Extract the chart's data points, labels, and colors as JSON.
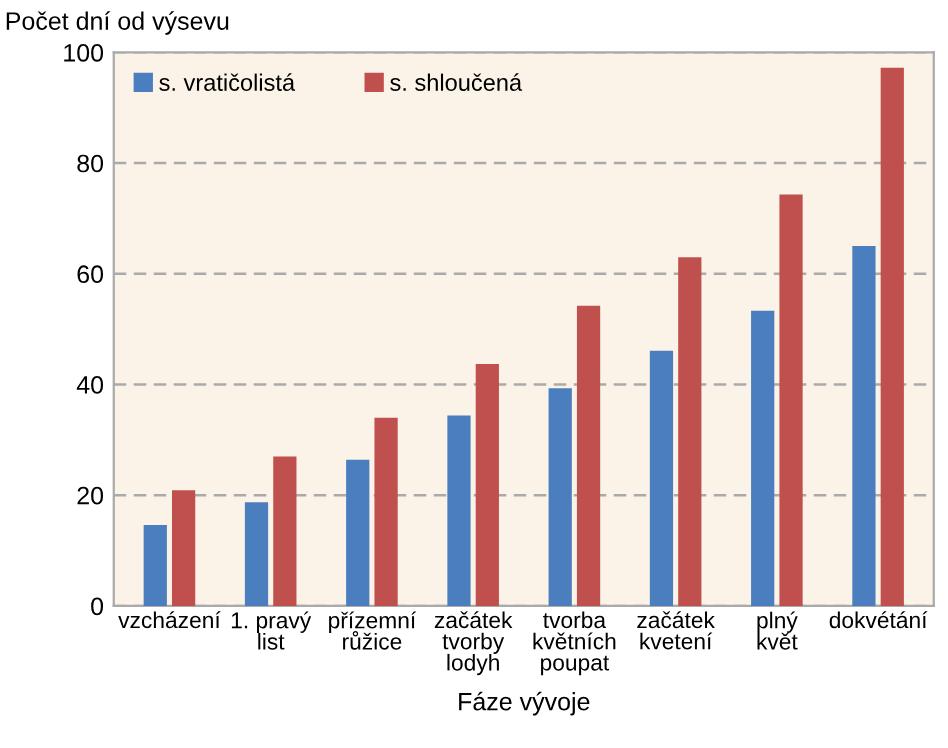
{
  "chart_data": {
    "type": "bar",
    "ylabel": "Počet dní od výsevu",
    "xlabel": "Fáze vývoje",
    "categories": [
      "vzcházení",
      "1. pravý\nlist",
      "přízemní\nrůžice",
      "začátek\ntvorby\nlodyh",
      "tvorba\nkvětních\npoupat",
      "začátek\nkvetení",
      "plný\nkvět",
      "dokvétání"
    ],
    "series": [
      {
        "name": "s. vratičolistá",
        "color": "#4a7ebf",
        "values": [
          14.6,
          18.7,
          26.4,
          34.4,
          39.3,
          46.1,
          53.3,
          65.0
        ]
      },
      {
        "name": "s. shloučená",
        "color": "#c0504d",
        "values": [
          20.9,
          27.0,
          34.0,
          43.7,
          54.2,
          63.0,
          74.3,
          97.2
        ]
      }
    ],
    "ylim": [
      0,
      100
    ],
    "yticks": [
      0,
      20,
      40,
      60,
      80,
      100
    ],
    "grid": "y",
    "legend": "top left"
  }
}
